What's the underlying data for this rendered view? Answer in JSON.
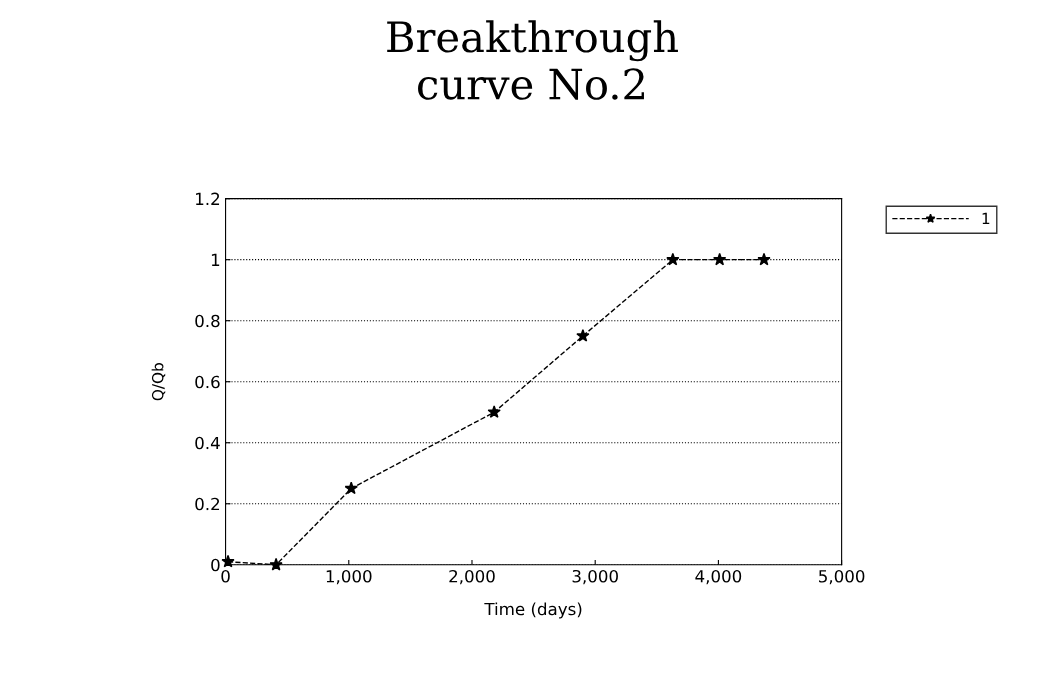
{
  "chart_data": {
    "type": "line",
    "title": "Breakthrough\ncurve No.2",
    "xlabel": "Time (days)",
    "ylabel": "Q/Qb",
    "xlim": [
      0,
      5000
    ],
    "xticks": [
      {
        "value": 0,
        "label": "0"
      },
      {
        "value": 1000,
        "label": "1,000"
      },
      {
        "value": 2000,
        "label": "2,000"
      },
      {
        "value": 3000,
        "label": "3,000"
      },
      {
        "value": 4000,
        "label": "4,000"
      },
      {
        "value": 5000,
        "label": "5,000"
      }
    ],
    "ylim": [
      0,
      1.2
    ],
    "yticks": [
      0,
      0.2,
      0.4,
      0.6,
      0.8,
      1,
      1.2
    ],
    "grid": "y",
    "legend": "top right",
    "marker": "star",
    "line_style": "dashed",
    "series": [
      {
        "name": "1",
        "color": "#000000",
        "x": [
          20,
          410,
          1020,
          2180,
          2900,
          3630,
          4010,
          4370
        ],
        "values": [
          0.01,
          0,
          0.25,
          0.5,
          0.75,
          1,
          1,
          1
        ]
      }
    ]
  }
}
